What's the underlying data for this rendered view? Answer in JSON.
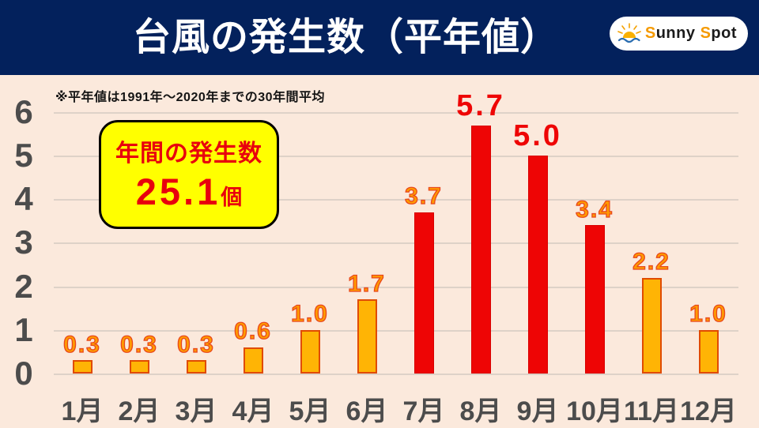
{
  "header": {
    "title": "台風の発生数（平年値）"
  },
  "logo": {
    "word1_initial": "S",
    "word1_rest": "unny ",
    "word2_initial": "S",
    "word2_rest": "pot"
  },
  "chart": {
    "note": "※平年値は1991年～2020年までの30年間平均",
    "annual_callout": {
      "label": "年間の発生数",
      "value": "25.1",
      "unit": "個"
    }
  },
  "chart_data": {
    "type": "bar",
    "title": "台風の発生数（平年値）",
    "categories": [
      "1月",
      "2月",
      "3月",
      "4月",
      "5月",
      "6月",
      "7月",
      "8月",
      "9月",
      "10月",
      "11月",
      "12月"
    ],
    "values": [
      0.3,
      0.3,
      0.3,
      0.6,
      1.0,
      1.7,
      3.7,
      5.7,
      5.0,
      3.4,
      2.2,
      1.0
    ],
    "bar_styles": [
      "orange",
      "orange",
      "orange",
      "orange",
      "orange",
      "orange",
      "red",
      "red",
      "red",
      "red",
      "orange",
      "orange"
    ],
    "value_label_styles": [
      "orange",
      "orange",
      "orange",
      "orange",
      "orange",
      "orange",
      "orange",
      "red",
      "red",
      "orange",
      "orange",
      "orange"
    ],
    "xlabel": "",
    "ylabel": "",
    "ylim": [
      0,
      6
    ],
    "yticks": [
      0,
      1,
      2,
      3,
      4,
      5,
      6
    ],
    "grid": true,
    "legend_position": "none",
    "annotation": "年間の発生数 25.1個"
  },
  "colors": {
    "header_bg": "#03215c",
    "page_bg": "#fbe9dc",
    "bar_orange": "#ffb405",
    "bar_orange_border": "#e04b00",
    "bar_red": "#ee0505",
    "bar_red_border": "#d90000",
    "value_orange": "#ff9a00",
    "value_outline": "#e8481c",
    "value_red": "#ee0505",
    "axis_text": "#4c4c4c",
    "gridline": "#ded2c8",
    "callout_bg": "#ffff00",
    "callout_border": "#000000",
    "callout_text": "#e8000d",
    "logo_accent": "#f59a00",
    "logo_wave": "#2a6db0"
  }
}
